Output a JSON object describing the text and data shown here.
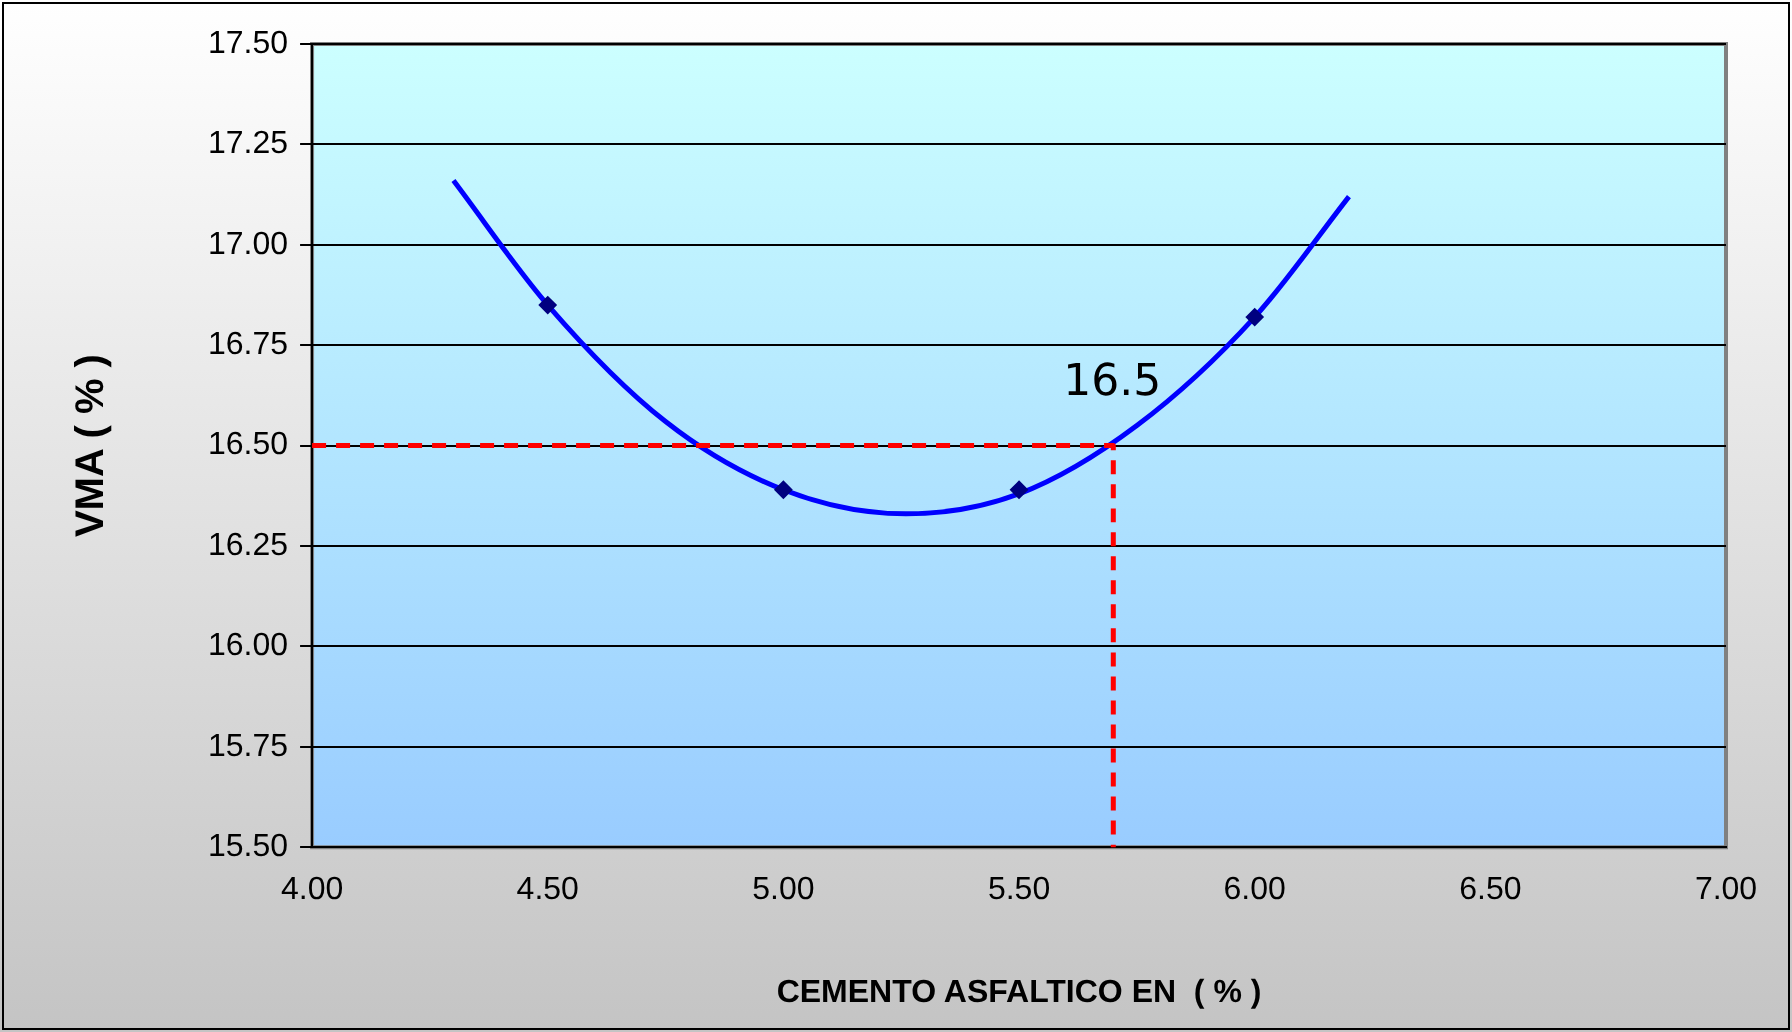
{
  "chart_data": {
    "type": "scatter",
    "xlabel": "CEMENTO ASFALTICO EN  ( % )",
    "ylabel": "VMA ( % )",
    "xlim": [
      4.0,
      7.0
    ],
    "xticks": [
      {
        "value": 4,
        "label": "4.00"
      },
      {
        "value": 4.5,
        "label": "4.50"
      },
      {
        "value": 5,
        "label": "5.00"
      },
      {
        "value": 5.5,
        "label": "5.50"
      },
      {
        "value": 6,
        "label": "6.00"
      },
      {
        "value": 6.5,
        "label": "6.50"
      },
      {
        "value": 7,
        "label": "7.00"
      }
    ],
    "ylim": [
      15.5,
      17.5
    ],
    "yticks": [
      {
        "value": 15.5,
        "label": "15.50"
      },
      {
        "value": 15.75,
        "label": "15.75"
      },
      {
        "value": 16,
        "label": "16.00"
      },
      {
        "value": 16.25,
        "label": "16.25"
      },
      {
        "value": 16.5,
        "label": "16.50"
      },
      {
        "value": 16.75,
        "label": "16.75"
      },
      {
        "value": 17,
        "label": "17.00"
      },
      {
        "value": 17.25,
        "label": "17.25"
      },
      {
        "value": 17.5,
        "label": "17.50"
      }
    ],
    "grid": "y",
    "legend": false,
    "series": [
      {
        "type": "line",
        "x": [
          4.3,
          4.5,
          4.75,
          5.0,
          5.26,
          5.5,
          5.75,
          6.0,
          6.2
        ],
        "values": [
          17.16,
          16.85,
          16.56,
          16.39,
          16.33,
          16.38,
          16.55,
          16.82,
          17.12
        ],
        "color": "#0000ff",
        "marker": "none",
        "line_style": "solid"
      },
      {
        "type": "line",
        "x": [
          4.0,
          5.7,
          5.7
        ],
        "values": [
          16.5,
          16.5,
          15.5
        ],
        "color": "#ff0000",
        "marker": "none",
        "line_style": "dashed"
      },
      {
        "x": [
          4.5,
          5.0,
          5.5,
          6.0
        ],
        "values": [
          16.85,
          16.39,
          16.39,
          16.82
        ],
        "color": "#000080",
        "marker": "diamond"
      }
    ],
    "annotations": [
      {
        "text": "16.5",
        "x": 5.7,
        "y": 16.5
      }
    ]
  }
}
